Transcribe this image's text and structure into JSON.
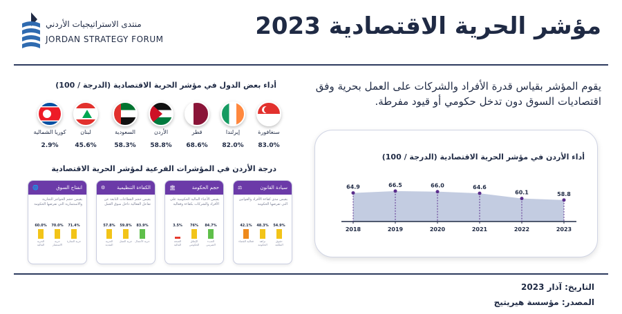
{
  "title": "مؤشر الحرية الاقتصادية 2023",
  "logo": {
    "arabic": "منتدى الاستراتيجيات الأردني",
    "english": "JORDAN STRATEGY FORUM"
  },
  "intro": "يقوم المؤشر بقياس قدرة الأفراد والشركات على العمل بحرية وفق اقتصاديات السوق دون تدخل حكومي أو قيود مفرطة.",
  "countries_title": "أداء بعض الدول في مؤشر الحرية الاقتصادية (الدرجة / 100)",
  "countries": [
    {
      "name": "سنغافورة",
      "value": "83.0%",
      "flag": "singapore-flag"
    },
    {
      "name": "إيرلندا",
      "value": "82.0%",
      "flag": "ireland-flag"
    },
    {
      "name": "قطر",
      "value": "68.6%",
      "flag": "qatar-flag"
    },
    {
      "name": "الأردن",
      "value": "58.8%",
      "flag": "jordan-flag"
    },
    {
      "name": "السعودية",
      "value": "58.3%",
      "flag": "uae-flag"
    },
    {
      "name": "لبنان",
      "value": "45.6%",
      "flag": "lebanon-flag"
    },
    {
      "name": "كوريا الشمالية",
      "value": "2.9%",
      "flag": "north-korea-flag"
    }
  ],
  "subindex_title": "درجة الأردن في المؤشرات الفرعية لمؤشر الحرية الاقتصادية",
  "cards": [
    {
      "title": "سيادة القانون",
      "icon": "scales-icon",
      "desc": "يقيس مدى كفاءة الأفراد والقوانين التي تفرضها الحكومة",
      "bars": [
        {
          "value": "54.9%",
          "label": "حقوق الملكية",
          "color": "#f2c418"
        },
        {
          "value": "48.3%",
          "label": "نزاهة الحكومة",
          "color": "#f2c418"
        },
        {
          "value": "42.1%",
          "label": "فعالية القضاء",
          "color": "#ee8a1c"
        }
      ]
    },
    {
      "title": "حجم الحكومة",
      "icon": "government-building-icon",
      "desc": "يقيس الأعباء المالية الحكومية على الأفراد والشركات بكفاءة وفعالية",
      "bars": [
        {
          "value": "84.7%",
          "label": "العبء الضريبي",
          "color": "#5fbf4a"
        },
        {
          "value": "76%",
          "label": "الإنفاق الحكومي",
          "color": "#f2c418"
        },
        {
          "value": "3.5%",
          "label": "الصحة المالية",
          "color": "#e53b2f"
        }
      ]
    },
    {
      "title": "الكفاءة التنظيمية",
      "icon": "org-chart-icon",
      "desc": "يقيس حجم القطاعات التابعة عن تفاعل الفعالية داخل سوق العمل",
      "bars": [
        {
          "value": "83.9%",
          "label": "حرية الأعمال",
          "color": "#5fbf4a"
        },
        {
          "value": "59.8%",
          "label": "حرية العمل",
          "color": "#f2c418"
        },
        {
          "value": "57.8%",
          "label": "الحرية النقدية",
          "color": "#f2c418"
        }
      ]
    },
    {
      "title": "انفتاح السوق",
      "icon": "globe-icon",
      "desc": "يقيس حجم الحواجز التجارية والاستثمارية التي تفرضها الحكومة",
      "bars": [
        {
          "value": "71.4%",
          "label": "حرية التجارة",
          "color": "#f2c418"
        },
        {
          "value": "70.0%",
          "label": "حرية الاستثمار",
          "color": "#f2c418"
        },
        {
          "value": "60.0%",
          "label": "الحرية المالية",
          "color": "#f2c418"
        }
      ]
    }
  ],
  "chart_data": {
    "type": "area",
    "title": "أداء الأردن في مؤشر الحرية الاقتصادية (الدرجة / 100)",
    "x": [
      "2018",
      "2019",
      "2020",
      "2021",
      "2022",
      "2023"
    ],
    "values": [
      64.9,
      66.5,
      66.0,
      64.6,
      60.1,
      58.8
    ],
    "value_labels": [
      "64.9",
      "66.5",
      "66.0",
      "64.6",
      "60.1",
      "58.8"
    ],
    "ylim": [
      45,
      70
    ],
    "grid": false,
    "colors": {
      "area": "#b9c3dc",
      "line": "#3a4a78",
      "marker": "#5a2d8c"
    }
  },
  "footer": {
    "date": "التاريخ: آذار 2023",
    "source": "المصدر: مؤسسة هيريتيج"
  },
  "colors": {
    "primary": "#1f2a44",
    "purple": "#6b3aa8"
  }
}
